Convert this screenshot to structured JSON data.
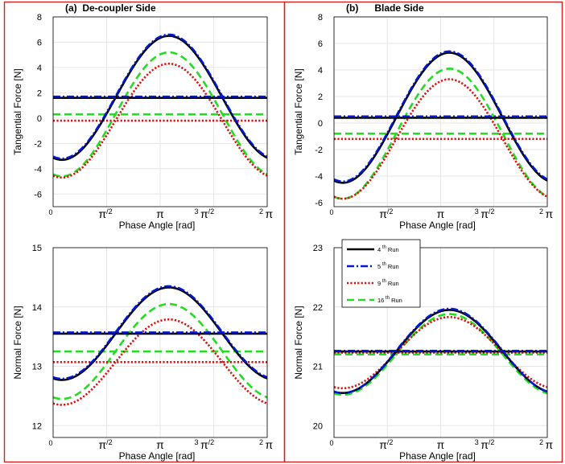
{
  "colors": {
    "frame": "#d42020",
    "grid": "#e6e6e6",
    "run4": "#000000",
    "run5": "#0018d0",
    "run9": "#e01010",
    "run16": "#22dd22"
  },
  "legend_labels": [
    "4 th Run",
    "5 th Run",
    "9 th Run",
    "16 th Run"
  ],
  "chart_data": [
    {
      "id": "a-tangential",
      "type": "line",
      "panel_title": "(a)  De-coupler Side",
      "xlabel": "Phase Angle [rad]",
      "ylabel": "Tangential Force [N]",
      "xlim": [
        0,
        6.2832
      ],
      "ylim": [
        -7,
        8
      ],
      "yticks": [
        -6,
        -4,
        -2,
        0,
        2,
        4,
        6,
        8
      ],
      "xtick_labels": [
        "0",
        "π/2",
        "π",
        "3 π/2",
        "2 π"
      ],
      "legend": false,
      "series": [
        {
          "name": "4 th Run",
          "style": "run4",
          "mean": 1.6,
          "amp": 4.9,
          "phase": 3.4
        },
        {
          "name": "5 th Run",
          "style": "run5",
          "mean": 1.7,
          "amp": 4.9,
          "phase": 3.4
        },
        {
          "name": "9 th Run",
          "style": "run9",
          "mean": -0.2,
          "amp": 4.5,
          "phase": 3.4
        },
        {
          "name": "16 th Run",
          "style": "run16",
          "mean": 0.3,
          "amp": 4.9,
          "phase": 3.4
        }
      ]
    },
    {
      "id": "b-tangential",
      "type": "line",
      "panel_title": "(b)      Blade Side",
      "xlabel": "Phase Angle [rad]",
      "ylabel": "Tangential Force [N]",
      "xlim": [
        0,
        6.2832
      ],
      "ylim": [
        -6.3,
        8
      ],
      "yticks": [
        -6,
        -4,
        -2,
        0,
        2,
        4,
        6,
        8
      ],
      "xtick_labels": [
        "0",
        "π/2",
        "π",
        "3 π/2",
        "2 π"
      ],
      "legend": false,
      "series": [
        {
          "name": "4 th Run",
          "style": "run4",
          "mean": 0.4,
          "amp": 4.9,
          "phase": 3.4
        },
        {
          "name": "5 th Run",
          "style": "run5",
          "mean": 0.5,
          "amp": 4.9,
          "phase": 3.4
        },
        {
          "name": "9 th Run",
          "style": "run9",
          "mean": -1.2,
          "amp": 4.5,
          "phase": 3.4
        },
        {
          "name": "16 th Run",
          "style": "run16",
          "mean": -0.8,
          "amp": 4.9,
          "phase": 3.4
        }
      ]
    },
    {
      "id": "a-normal",
      "type": "line",
      "panel_title": "",
      "xlabel": "Phase Angle [rad]",
      "ylabel": "Normal Force [N]",
      "xlim": [
        0,
        6.2832
      ],
      "ylim": [
        11.8,
        15
      ],
      "yticks": [
        12,
        13,
        14,
        15
      ],
      "xtick_labels": [
        "0",
        "π/2",
        "π",
        "3 π/2",
        "2 π"
      ],
      "legend": false,
      "series": [
        {
          "name": "4 th Run",
          "style": "run4",
          "mean": 13.55,
          "amp": 0.78,
          "phase": 3.4
        },
        {
          "name": "5 th Run",
          "style": "run5",
          "mean": 13.57,
          "amp": 0.78,
          "phase": 3.4
        },
        {
          "name": "9 th Run",
          "style": "run9",
          "mean": 13.07,
          "amp": 0.72,
          "phase": 3.4
        },
        {
          "name": "16 th Run",
          "style": "run16",
          "mean": 13.25,
          "amp": 0.8,
          "phase": 3.4
        }
      ]
    },
    {
      "id": "b-normal",
      "type": "line",
      "panel_title": "",
      "xlabel": "Phase Angle [rad]",
      "ylabel": "Normal Force [N]",
      "xlim": [
        0,
        6.2832
      ],
      "ylim": [
        19.8,
        23
      ],
      "yticks": [
        20,
        21,
        22,
        23
      ],
      "xtick_labels": [
        "0",
        "π/2",
        "π",
        "3 π/2",
        "2 π"
      ],
      "legend": true,
      "legend_position": "top-left",
      "series": [
        {
          "name": "4 th Run",
          "style": "run4",
          "mean": 21.25,
          "amp": 0.7,
          "phase": 3.4
        },
        {
          "name": "5 th Run",
          "style": "run5",
          "mean": 21.26,
          "amp": 0.71,
          "phase": 3.4
        },
        {
          "name": "9 th Run",
          "style": "run9",
          "mean": 21.23,
          "amp": 0.6,
          "phase": 3.4
        },
        {
          "name": "16 th Run",
          "style": "run16",
          "mean": 21.2,
          "amp": 0.68,
          "phase": 3.4
        }
      ]
    }
  ]
}
